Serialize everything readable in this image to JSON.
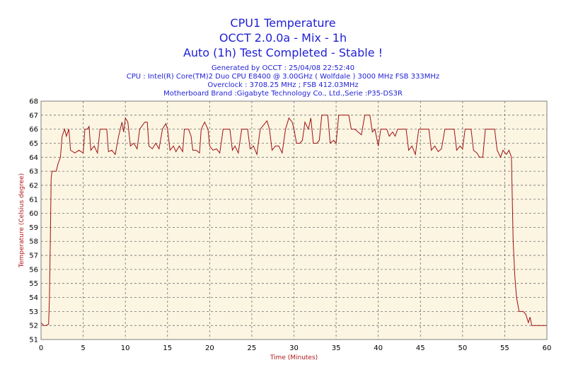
{
  "chart_data": {
    "type": "line",
    "title": "CPU1 Temperature",
    "subtitle": [
      "OCCT 2.0.0a - Mix - 1h",
      "Auto (1h) Test Completed - Stable !"
    ],
    "info_lines": [
      "Generated by OCCT : 25/04/08 22:52:40",
      "CPU : Intel(R) Core(TM)2 Duo CPU E8400 @ 3.00GHz ( Wolfdale ) 3000 MHz FSB 333MHz",
      "Overclock : 3708.25 MHz ; FSB 412.03MHz",
      "Motherboard Brand :Gigabyte Technology Co., Ltd.,Serie :P35-DS3R"
    ],
    "xlabel": "Time (Minutes)",
    "ylabel": "Temperature (Celsius degree)",
    "xlim": [
      0,
      60
    ],
    "ylim": [
      51,
      68
    ],
    "xticks": [
      0,
      5,
      10,
      15,
      20,
      25,
      30,
      35,
      40,
      45,
      50,
      55,
      60
    ],
    "yticks": [
      51,
      52,
      53,
      54,
      55,
      56,
      57,
      58,
      59,
      60,
      61,
      62,
      63,
      64,
      65,
      66,
      67,
      68
    ],
    "grid": true,
    "colors": {
      "line": "#a01010",
      "plot_background": "#fbf5e2",
      "title": "#1f1fd6",
      "axis_label": "#b0191b"
    },
    "series": [
      {
        "values": [
          [
            0,
            52.2
          ],
          [
            0.3,
            52.0
          ],
          [
            0.6,
            52.0
          ],
          [
            0.9,
            52.1
          ],
          [
            1.0,
            54.0
          ],
          [
            1.1,
            58.0
          ],
          [
            1.2,
            62.5
          ],
          [
            1.3,
            63.0
          ],
          [
            1.8,
            63.0
          ],
          [
            2.0,
            63.5
          ],
          [
            2.3,
            64.0
          ],
          [
            2.5,
            65.5
          ],
          [
            2.8,
            66.0
          ],
          [
            3.0,
            65.5
          ],
          [
            3.3,
            66.0
          ],
          [
            3.5,
            64.5
          ],
          [
            4.0,
            64.3
          ],
          [
            4.5,
            64.5
          ],
          [
            5.0,
            64.3
          ],
          [
            5.2,
            66.0
          ],
          [
            5.5,
            66.0
          ],
          [
            5.7,
            66.2
          ],
          [
            5.9,
            64.5
          ],
          [
            6.3,
            64.8
          ],
          [
            6.7,
            64.3
          ],
          [
            7.0,
            66.0
          ],
          [
            7.8,
            66.0
          ],
          [
            8.0,
            64.4
          ],
          [
            8.4,
            64.5
          ],
          [
            8.8,
            64.2
          ],
          [
            9.2,
            65.5
          ],
          [
            9.6,
            66.5
          ],
          [
            9.8,
            65.8
          ],
          [
            10.0,
            66.8
          ],
          [
            10.3,
            66.5
          ],
          [
            10.6,
            64.8
          ],
          [
            11.0,
            65.0
          ],
          [
            11.4,
            64.6
          ],
          [
            11.7,
            66.0
          ],
          [
            12.3,
            66.5
          ],
          [
            12.6,
            66.5
          ],
          [
            12.8,
            64.8
          ],
          [
            13.2,
            64.6
          ],
          [
            13.6,
            65.0
          ],
          [
            14.0,
            64.6
          ],
          [
            14.4,
            66.0
          ],
          [
            14.8,
            66.4
          ],
          [
            15.0,
            66.0
          ],
          [
            15.3,
            64.5
          ],
          [
            15.7,
            64.8
          ],
          [
            16.0,
            64.4
          ],
          [
            16.4,
            64.8
          ],
          [
            16.8,
            64.4
          ],
          [
            17.0,
            66.0
          ],
          [
            17.5,
            66.0
          ],
          [
            17.8,
            65.5
          ],
          [
            18.0,
            64.5
          ],
          [
            18.4,
            64.5
          ],
          [
            18.8,
            64.3
          ],
          [
            19.0,
            66.0
          ],
          [
            19.4,
            66.5
          ],
          [
            19.8,
            66.0
          ],
          [
            20.0,
            64.8
          ],
          [
            20.4,
            64.5
          ],
          [
            20.8,
            64.6
          ],
          [
            21.2,
            64.3
          ],
          [
            21.6,
            66.0
          ],
          [
            22.4,
            66.0
          ],
          [
            22.7,
            64.5
          ],
          [
            23.0,
            64.8
          ],
          [
            23.4,
            64.3
          ],
          [
            23.8,
            66.0
          ],
          [
            24.5,
            66.0
          ],
          [
            24.8,
            64.6
          ],
          [
            25.2,
            64.8
          ],
          [
            25.6,
            64.2
          ],
          [
            26.0,
            66.0
          ],
          [
            26.4,
            66.3
          ],
          [
            26.8,
            66.6
          ],
          [
            27.1,
            66.0
          ],
          [
            27.4,
            64.5
          ],
          [
            27.8,
            64.8
          ],
          [
            28.2,
            64.8
          ],
          [
            28.6,
            64.3
          ],
          [
            29.0,
            66.0
          ],
          [
            29.4,
            66.8
          ],
          [
            29.8,
            66.5
          ],
          [
            30.0,
            66.0
          ],
          [
            30.3,
            65.0
          ],
          [
            30.7,
            65.0
          ],
          [
            31.0,
            65.2
          ],
          [
            31.3,
            66.5
          ],
          [
            31.7,
            66.0
          ],
          [
            32.0,
            66.8
          ],
          [
            32.3,
            65.0
          ],
          [
            32.7,
            65.0
          ],
          [
            33.0,
            65.2
          ],
          [
            33.3,
            67.0
          ],
          [
            34.0,
            67.0
          ],
          [
            34.3,
            65.0
          ],
          [
            34.7,
            65.2
          ],
          [
            35.0,
            65.0
          ],
          [
            35.3,
            67.0
          ],
          [
            36.5,
            67.0
          ],
          [
            36.8,
            66.0
          ],
          [
            37.2,
            66.0
          ],
          [
            37.6,
            65.8
          ],
          [
            38.0,
            65.6
          ],
          [
            38.4,
            67.0
          ],
          [
            39.0,
            67.0
          ],
          [
            39.3,
            65.8
          ],
          [
            39.6,
            66.0
          ],
          [
            40.0,
            64.8
          ],
          [
            40.3,
            66.0
          ],
          [
            41.0,
            66.0
          ],
          [
            41.3,
            65.5
          ],
          [
            41.7,
            65.8
          ],
          [
            42.0,
            65.5
          ],
          [
            42.3,
            66.0
          ],
          [
            43.3,
            66.0
          ],
          [
            43.6,
            64.5
          ],
          [
            44.0,
            64.8
          ],
          [
            44.4,
            64.2
          ],
          [
            44.8,
            66.0
          ],
          [
            46.0,
            66.0
          ],
          [
            46.3,
            64.5
          ],
          [
            46.7,
            64.8
          ],
          [
            47.1,
            64.4
          ],
          [
            47.5,
            64.6
          ],
          [
            47.9,
            66.0
          ],
          [
            49.0,
            66.0
          ],
          [
            49.3,
            64.5
          ],
          [
            49.7,
            64.8
          ],
          [
            50.0,
            64.6
          ],
          [
            50.3,
            66.0
          ],
          [
            51.0,
            66.0
          ],
          [
            51.3,
            64.5
          ],
          [
            51.7,
            64.3
          ],
          [
            52.0,
            64.0
          ],
          [
            52.4,
            64.0
          ],
          [
            52.7,
            66.0
          ],
          [
            53.8,
            66.0
          ],
          [
            54.1,
            64.5
          ],
          [
            54.5,
            64.0
          ],
          [
            54.8,
            64.5
          ],
          [
            55.2,
            64.2
          ],
          [
            55.5,
            64.5
          ],
          [
            55.8,
            64.0
          ],
          [
            56.0,
            58.0
          ],
          [
            56.2,
            55.5
          ],
          [
            56.4,
            54.0
          ],
          [
            56.7,
            53.0
          ],
          [
            57.2,
            53.0
          ],
          [
            57.5,
            52.8
          ],
          [
            57.8,
            52.2
          ],
          [
            58.0,
            52.6
          ],
          [
            58.2,
            52.0
          ],
          [
            60.0,
            52.0
          ]
        ]
      }
    ]
  }
}
